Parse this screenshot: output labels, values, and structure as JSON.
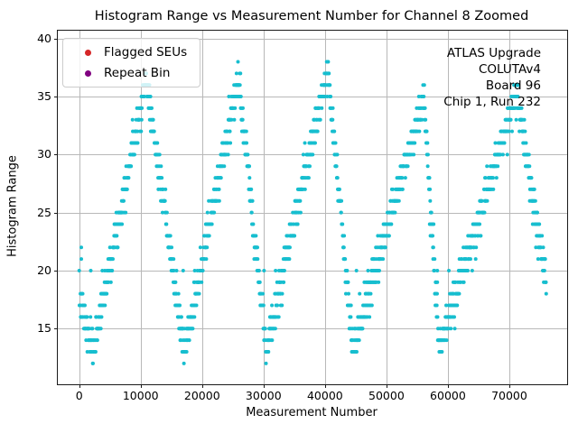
{
  "figure": {
    "title": "Histogram Range vs Measurement Number for Channel 8 Zoomed",
    "xlabel": "Measurement Number",
    "ylabel": "Histogram Range"
  },
  "legend": {
    "entries": [
      {
        "label": "Flagged SEUs",
        "color": "#d62728"
      },
      {
        "label": "Repeat Bin",
        "color": "#800080"
      }
    ]
  },
  "annotation": {
    "lines": [
      "ATLAS Upgrade",
      "COLUTAv4",
      "Board 96",
      "Chip 1, Run 232"
    ]
  },
  "chart_data": {
    "type": "scatter",
    "title": "Histogram Range vs Measurement Number for Channel 8 Zoomed",
    "xlabel": "Measurement Number",
    "ylabel": "Histogram Range",
    "xlim": [
      -3485,
      79412
    ],
    "ylim": [
      10.2,
      40.68
    ],
    "x_ticks": [
      0,
      10000,
      20000,
      30000,
      40000,
      50000,
      60000,
      70000
    ],
    "x_tick_labels": [
      "0",
      "10000",
      "20000",
      "30000",
      "40000",
      "50000",
      "60000",
      "70000"
    ],
    "y_ticks": [
      15,
      20,
      25,
      30,
      35,
      40
    ],
    "y_tick_labels": [
      "15",
      "20",
      "25",
      "30",
      "35",
      "40"
    ],
    "grid": true,
    "grid_color": "#b8b8b8",
    "point_color": "#17becf",
    "marker_radius_px": 2.0,
    "series_model": {
      "note": "histogram range = round(envelope(x) + gaussian noise), integer-quantized bands 12..39",
      "x_start": 0,
      "x_end": 76000,
      "x_step": 40,
      "noise_sigma": 0.8,
      "seed": 7,
      "envelope_anchors": [
        [
          0,
          17.5
        ],
        [
          2200,
          13.0
        ],
        [
          10900,
          36.5
        ],
        [
          17100,
          13.0
        ],
        [
          25900,
          36.5
        ],
        [
          30500,
          13.2
        ],
        [
          40500,
          37.5
        ],
        [
          44500,
          13.2
        ],
        [
          56100,
          35.0
        ],
        [
          58600,
          13.2
        ],
        [
          71200,
          35.5
        ],
        [
          76000,
          19.0
        ]
      ],
      "peak_summary": {
        "x": [
          10900,
          25900,
          40500,
          56100,
          71200
        ],
        "max_range": [
          38,
          38,
          39,
          36,
          37
        ]
      },
      "valley_summary": {
        "x": [
          2200,
          17100,
          30500,
          44500,
          58600
        ],
        "min_range": [
          12,
          12,
          12,
          12,
          12
        ]
      },
      "spikes": {
        "period": 1880,
        "y": 20,
        "only_where_envelope_below": 19.5
      }
    },
    "extra_points": [
      [
        340,
        21
      ],
      [
        340,
        22
      ]
    ],
    "legend_entries": [
      "Flagged SEUs",
      "Repeat Bin"
    ],
    "legend_colors": [
      "#d62728",
      "#800080"
    ],
    "annotation_lines": [
      "ATLAS Upgrade",
      "COLUTAv4",
      "Board 96",
      "Chip 1, Run 232"
    ]
  }
}
